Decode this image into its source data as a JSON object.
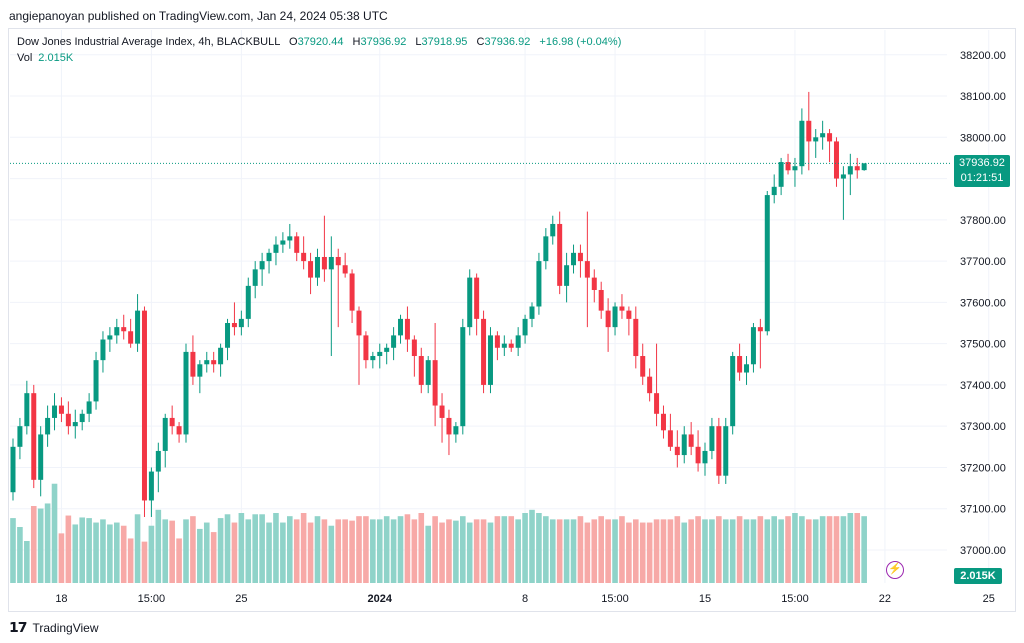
{
  "header": {
    "credit": "angiepanoyan published on TradingView.com, Jan 24, 2024 05:38 UTC"
  },
  "legend": {
    "symbol": "Dow Jones Industrial Average Index, 4h, BLACKBULL",
    "o_label": "O",
    "o_value": "37920.44",
    "h_label": "H",
    "h_value": "37936.92",
    "l_label": "L",
    "l_value": "37918.95",
    "c_label": "C",
    "c_value": "37936.92",
    "change": "+16.98 (+0.04%)",
    "vol_label": "Vol",
    "vol_value": "2.015K"
  },
  "price_tag": {
    "price": "37936.92",
    "countdown": "01:21:51"
  },
  "vol_tag": "2.015K",
  "footer": {
    "brand": "TradingView"
  },
  "colors": {
    "up": "#089981",
    "down": "#f23645",
    "vol_up": "#8fd3c9",
    "vol_down": "#f7a9a7",
    "grid": "#f0f3fa"
  },
  "chart_data": {
    "type": "candlestick",
    "y_axis": {
      "ylim": [
        36920,
        38260
      ],
      "ticks": [
        37000,
        37100,
        37200,
        37300,
        37400,
        37500,
        37600,
        37700,
        37800,
        37900,
        38000,
        38100,
        38200
      ],
      "tick_labels": [
        "37000.00",
        "37100.00",
        "37200.00",
        "37300.00",
        "37400.00",
        "37500.00",
        "37600.00",
        "37700.00",
        "37800.00",
        "37900.00",
        "38000.00",
        "38100.00",
        "38200.00"
      ]
    },
    "x_axis": {
      "tick_labels": [
        "18",
        "15:00",
        "25",
        "2024",
        "8",
        "15:00",
        "15",
        "15:00",
        "22",
        "25"
      ],
      "tick_bars": [
        7,
        20,
        33,
        53,
        74,
        87,
        100,
        113,
        126,
        141
      ]
    },
    "grid": true,
    "last_price": 37936.92,
    "ohlc": [
      [
        37140,
        37270,
        37120,
        37250
      ],
      [
        37250,
        37320,
        37220,
        37300
      ],
      [
        37300,
        37410,
        37280,
        37380
      ],
      [
        37380,
        37400,
        37150,
        37170
      ],
      [
        37170,
        37300,
        37130,
        37280
      ],
      [
        37280,
        37350,
        37250,
        37320
      ],
      [
        37320,
        37380,
        37290,
        37350
      ],
      [
        37350,
        37370,
        37310,
        37330
      ],
      [
        37330,
        37360,
        37280,
        37300
      ],
      [
        37300,
        37340,
        37270,
        37310
      ],
      [
        37310,
        37340,
        37290,
        37330
      ],
      [
        37330,
        37380,
        37310,
        37360
      ],
      [
        37360,
        37480,
        37340,
        37460
      ],
      [
        37460,
        37530,
        37430,
        37510
      ],
      [
        37510,
        37540,
        37480,
        37520
      ],
      [
        37520,
        37560,
        37500,
        37540
      ],
      [
        37540,
        37570,
        37510,
        37530
      ],
      [
        37530,
        37560,
        37490,
        37500
      ],
      [
        37500,
        37620,
        37480,
        37580
      ],
      [
        37580,
        37590,
        37080,
        37120
      ],
      [
        37120,
        37200,
        37080,
        37190
      ],
      [
        37190,
        37260,
        37140,
        37240
      ],
      [
        37240,
        37330,
        37200,
        37320
      ],
      [
        37320,
        37350,
        37280,
        37300
      ],
      [
        37300,
        37310,
        37260,
        37280
      ],
      [
        37280,
        37500,
        37260,
        37480
      ],
      [
        37480,
        37520,
        37400,
        37420
      ],
      [
        37420,
        37460,
        37380,
        37450
      ],
      [
        37450,
        37480,
        37430,
        37460
      ],
      [
        37460,
        37480,
        37430,
        37450
      ],
      [
        37450,
        37500,
        37420,
        37490
      ],
      [
        37490,
        37560,
        37460,
        37550
      ],
      [
        37550,
        37600,
        37520,
        37540
      ],
      [
        37540,
        37580,
        37520,
        37560
      ],
      [
        37560,
        37660,
        37540,
        37640
      ],
      [
        37640,
        37700,
        37610,
        37680
      ],
      [
        37680,
        37720,
        37640,
        37700
      ],
      [
        37700,
        37730,
        37670,
        37720
      ],
      [
        37720,
        37760,
        37690,
        37740
      ],
      [
        37740,
        37770,
        37720,
        37750
      ],
      [
        37750,
        37790,
        37730,
        37760
      ],
      [
        37760,
        37770,
        37700,
        37720
      ],
      [
        37720,
        37760,
        37680,
        37700
      ],
      [
        37700,
        37720,
        37620,
        37660
      ],
      [
        37660,
        37730,
        37640,
        37710
      ],
      [
        37710,
        37810,
        37650,
        37680
      ],
      [
        37680,
        37760,
        37470,
        37710
      ],
      [
        37710,
        37730,
        37540,
        37690
      ],
      [
        37690,
        37720,
        37660,
        37670
      ],
      [
        37670,
        37680,
        37550,
        37580
      ],
      [
        37580,
        37590,
        37400,
        37520
      ],
      [
        37520,
        37530,
        37440,
        37460
      ],
      [
        37460,
        37480,
        37440,
        37470
      ],
      [
        37470,
        37500,
        37440,
        37480
      ],
      [
        37480,
        37500,
        37450,
        37490
      ],
      [
        37490,
        37540,
        37460,
        37520
      ],
      [
        37520,
        37570,
        37500,
        37560
      ],
      [
        37560,
        37590,
        37480,
        37510
      ],
      [
        37510,
        37520,
        37420,
        37470
      ],
      [
        37470,
        37490,
        37380,
        37400
      ],
      [
        37400,
        37470,
        37380,
        37460
      ],
      [
        37460,
        37550,
        37300,
        37350
      ],
      [
        37350,
        37380,
        37260,
        37320
      ],
      [
        37320,
        37340,
        37230,
        37280
      ],
      [
        37280,
        37310,
        37260,
        37300
      ],
      [
        37300,
        37560,
        37280,
        37540
      ],
      [
        37540,
        37680,
        37520,
        37660
      ],
      [
        37660,
        37670,
        37520,
        37560
      ],
      [
        37560,
        37580,
        37380,
        37400
      ],
      [
        37400,
        37540,
        37380,
        37520
      ],
      [
        37520,
        37530,
        37460,
        37490
      ],
      [
        37490,
        37520,
        37470,
        37500
      ],
      [
        37500,
        37510,
        37480,
        37490
      ],
      [
        37490,
        37540,
        37470,
        37520
      ],
      [
        37520,
        37570,
        37500,
        37560
      ],
      [
        37560,
        37600,
        37540,
        37590
      ],
      [
        37590,
        37720,
        37570,
        37700
      ],
      [
        37700,
        37780,
        37680,
        37760
      ],
      [
        37760,
        37810,
        37740,
        37790
      ],
      [
        37790,
        37820,
        37620,
        37640
      ],
      [
        37640,
        37720,
        37600,
        37690
      ],
      [
        37690,
        37740,
        37670,
        37720
      ],
      [
        37720,
        37740,
        37660,
        37700
      ],
      [
        37700,
        37820,
        37540,
        37660
      ],
      [
        37660,
        37680,
        37600,
        37630
      ],
      [
        37630,
        37650,
        37560,
        37580
      ],
      [
        37580,
        37610,
        37480,
        37540
      ],
      [
        37540,
        37600,
        37520,
        37590
      ],
      [
        37590,
        37620,
        37560,
        37580
      ],
      [
        37580,
        37590,
        37520,
        37560
      ],
      [
        37560,
        37590,
        37440,
        37470
      ],
      [
        37470,
        37500,
        37400,
        37420
      ],
      [
        37420,
        37440,
        37360,
        37380
      ],
      [
        37380,
        37500,
        37300,
        37330
      ],
      [
        37330,
        37350,
        37270,
        37290
      ],
      [
        37290,
        37330,
        37240,
        37250
      ],
      [
        37250,
        37290,
        37200,
        37230
      ],
      [
        37230,
        37300,
        37210,
        37280
      ],
      [
        37280,
        37310,
        37230,
        37250
      ],
      [
        37250,
        37290,
        37190,
        37210
      ],
      [
        37210,
        37260,
        37180,
        37240
      ],
      [
        37240,
        37320,
        37220,
        37300
      ],
      [
        37300,
        37320,
        37160,
        37180
      ],
      [
        37180,
        37320,
        37160,
        37300
      ],
      [
        37300,
        37480,
        37280,
        37470
      ],
      [
        37470,
        37500,
        37410,
        37430
      ],
      [
        37430,
        37470,
        37400,
        37450
      ],
      [
        37450,
        37550,
        37430,
        37540
      ],
      [
        37540,
        37560,
        37440,
        37530
      ],
      [
        37530,
        37870,
        37520,
        37860
      ],
      [
        37860,
        37910,
        37840,
        37880
      ],
      [
        37880,
        37950,
        37860,
        37940
      ],
      [
        37940,
        37960,
        37910,
        37920
      ],
      [
        37920,
        37950,
        37880,
        37930
      ],
      [
        37930,
        38070,
        37910,
        38040
      ],
      [
        38040,
        38110,
        37920,
        37990
      ],
      [
        37990,
        38020,
        37950,
        38000
      ],
      [
        38000,
        38040,
        37970,
        38010
      ],
      [
        38010,
        38020,
        37940,
        37990
      ],
      [
        37990,
        38000,
        37880,
        37900
      ],
      [
        37900,
        37930,
        37800,
        37910
      ],
      [
        37910,
        37960,
        37860,
        37930
      ],
      [
        37930,
        37950,
        37900,
        37920
      ],
      [
        37920.44,
        37936.92,
        37918.95,
        37936.92
      ]
    ],
    "volume": [
      1020,
      880,
      660,
      1210,
      1170,
      1250,
      1560,
      780,
      1060,
      920,
      1030,
      1020,
      950,
      1000,
      920,
      950,
      900,
      700,
      1080,
      650,
      900,
      1150,
      1000,
      980,
      700,
      1000,
      1050,
      850,
      950,
      800,
      1020,
      1080,
      950,
      1100,
      1000,
      1080,
      1080,
      950,
      1100,
      950,
      1050,
      1000,
      1100,
      950,
      1050,
      1000,
      900,
      1000,
      1000,
      980,
      1050,
      1050,
      1000,
      1000,
      1050,
      1000,
      1050,
      1080,
      1000,
      1100,
      900,
      1050,
      950,
      1000,
      980,
      1050,
      950,
      1000,
      1000,
      950,
      1050,
      1050,
      1050,
      1000,
      1100,
      1150,
      1100,
      1050,
      1000,
      1000,
      1000,
      1000,
      1050,
      950,
      1000,
      1050,
      1000,
      1000,
      1050,
      950,
      1000,
      950,
      950,
      1000,
      1000,
      1000,
      1050,
      950,
      1000,
      1050,
      1000,
      1000,
      1050,
      1000,
      1000,
      1050,
      1000,
      1000,
      1050,
      1000,
      1050,
      1000,
      1050,
      1100,
      1050,
      1000,
      1000,
      1050,
      1050,
      1050,
      1050,
      1100,
      1100,
      1050,
      1050,
      1000,
      2015
    ]
  }
}
